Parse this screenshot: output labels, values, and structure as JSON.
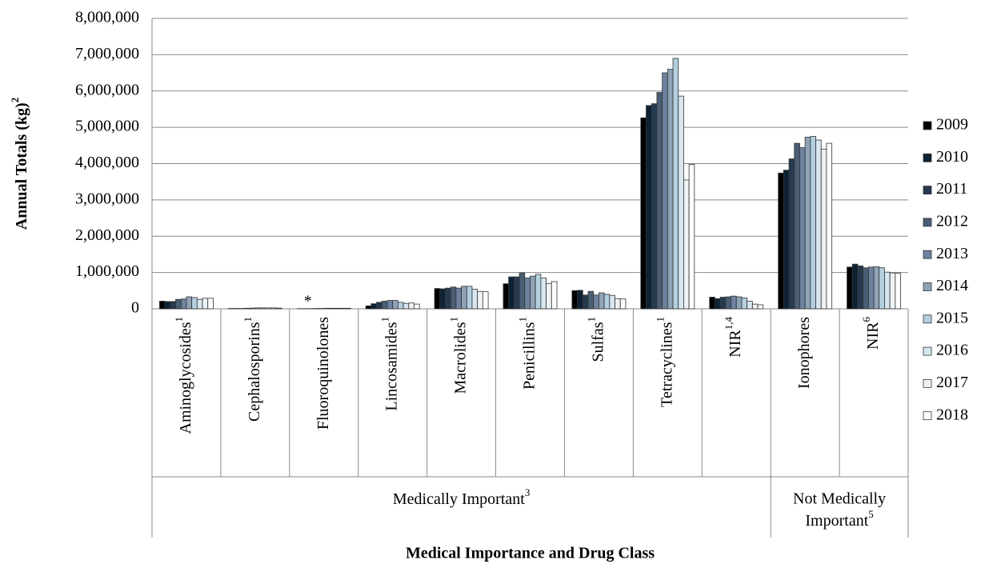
{
  "chart_data": {
    "type": "bar",
    "y_label": "Annual Totals (kg)",
    "y_label_note": "2",
    "x_label": "Medical Importance and Drug Class",
    "annotation": "*",
    "categories": [
      "Aminoglycosides",
      "Cephalosporins",
      "Fluoroquinolones",
      "Lincosamides",
      "Macrolides",
      "Penicillins",
      "Sulfas",
      "Tetracyclines",
      "NIR",
      "Ionophores",
      "NIR"
    ],
    "category_notes": [
      "1",
      "1",
      null,
      "1",
      "1",
      "1",
      "1",
      "1",
      "1,4",
      null,
      "6"
    ],
    "groups": [
      {
        "label": "Medically Important",
        "note": "3"
      },
      {
        "label": "Not Medically Important",
        "note": "5"
      }
    ],
    "series": [
      {
        "name": "2009",
        "color": "#000000",
        "values": [
          210000,
          10000,
          5000,
          80000,
          560000,
          690000,
          500000,
          5260000,
          320000,
          3740000,
          1150000
        ]
      },
      {
        "name": "2010",
        "color": "#0d2233",
        "values": [
          200000,
          10000,
          5000,
          140000,
          550000,
          880000,
          510000,
          5600000,
          280000,
          3820000,
          1230000
        ]
      },
      {
        "name": "2011",
        "color": "#263a4f",
        "values": [
          200000,
          10000,
          5000,
          180000,
          570000,
          880000,
          380000,
          5650000,
          320000,
          4130000,
          1180000
        ]
      },
      {
        "name": "2012",
        "color": "#4a5e74",
        "values": [
          260000,
          15000,
          10000,
          210000,
          600000,
          990000,
          480000,
          5960000,
          330000,
          4560000,
          1130000
        ]
      },
      {
        "name": "2013",
        "color": "#6e82a0",
        "values": [
          270000,
          20000,
          10000,
          230000,
          570000,
          850000,
          380000,
          6500000,
          350000,
          4440000,
          1150000
        ]
      },
      {
        "name": "2014",
        "color": "#8fa3b6",
        "values": [
          330000,
          25000,
          15000,
          230000,
          620000,
          900000,
          440000,
          6600000,
          330000,
          4730000,
          1160000
        ]
      },
      {
        "name": "2015",
        "color": "#b3cfe0",
        "values": [
          310000,
          25000,
          15000,
          180000,
          620000,
          950000,
          400000,
          6900000,
          300000,
          4750000,
          1130000
        ]
      },
      {
        "name": "2016",
        "color": "#d7e6ef",
        "values": [
          260000,
          25000,
          15000,
          150000,
          540000,
          850000,
          370000,
          5860000,
          210000,
          4650000,
          1010000
        ]
      },
      {
        "name": "2017",
        "color": "#eef2f5",
        "values": [
          290000,
          25000,
          15000,
          160000,
          480000,
          700000,
          280000,
          3550000,
          130000,
          4400000,
          990000
        ]
      },
      {
        "name": "2018",
        "color": "#ffffff",
        "values": [
          290000,
          20000,
          15000,
          130000,
          470000,
          750000,
          270000,
          3980000,
          110000,
          4560000,
          980000
        ]
      }
    ],
    "ylim": [
      0,
      8000000
    ],
    "yticks": [
      0,
      {
        "value": 1000000,
        "label": "1,000,000"
      },
      {
        "value": 2000000,
        "label": "2,000,000"
      },
      {
        "value": 3000000,
        "label": "3,000,000"
      },
      {
        "value": 4000000,
        "label": "4,000,000"
      },
      {
        "value": 5000000,
        "label": "5,000,000"
      },
      {
        "value": 6000000,
        "label": "6,000,000"
      },
      {
        "value": 7000000,
        "label": "7,000,000"
      },
      {
        "value": 8000000,
        "label": "8,000,000"
      }
    ],
    "grid": true,
    "legend": "right"
  }
}
